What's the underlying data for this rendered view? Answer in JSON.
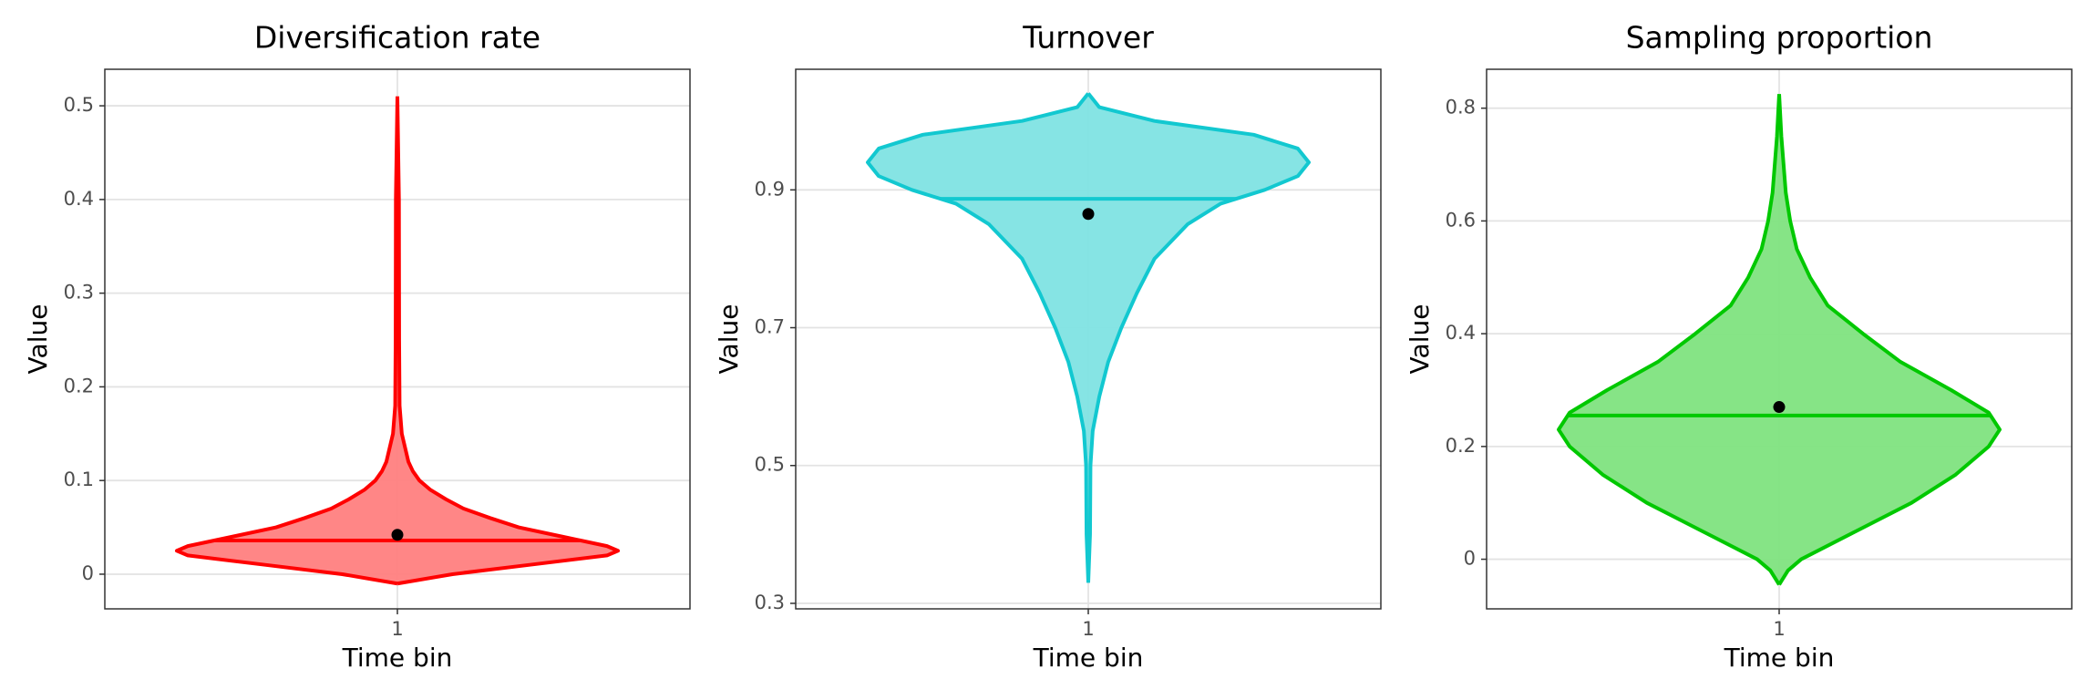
{
  "chart_data": [
    {
      "type": "violin",
      "title": "Diversification rate",
      "x_label": "Time bin",
      "y_label": "Value",
      "categories": [
        "1"
      ],
      "ylim": [
        -0.037,
        0.539
      ],
      "yticks": [
        0.0,
        0.1,
        0.2,
        0.3,
        0.4,
        0.5
      ],
      "grid": true,
      "color": "#ff0000",
      "fill": "#ff7f7f",
      "violin": {
        "y": [
          -0.01,
          0.0,
          0.01,
          0.02,
          0.025,
          0.03,
          0.04,
          0.05,
          0.06,
          0.07,
          0.08,
          0.09,
          0.1,
          0.11,
          0.12,
          0.13,
          0.15,
          0.18,
          0.25,
          0.4,
          0.51
        ],
        "density": [
          0,
          0.25,
          0.6,
          0.95,
          1.0,
          0.95,
          0.75,
          0.55,
          0.42,
          0.3,
          0.22,
          0.15,
          0.1,
          0.07,
          0.05,
          0.04,
          0.02,
          0.01,
          0.008,
          0.007,
          0
        ]
      },
      "median": 0.036,
      "mean": 0.042
    },
    {
      "type": "violin",
      "title": "Turnover",
      "x_label": "Time bin",
      "y_label": "Value",
      "categories": [
        "1"
      ],
      "ylim": [
        0.292,
        1.075
      ],
      "yticks": [
        0.3,
        0.5,
        0.7,
        0.9
      ],
      "grid": true,
      "color": "#12c8d0",
      "fill": "#7fe3e3",
      "violin": {
        "y": [
          0.33,
          0.4,
          0.5,
          0.55,
          0.6,
          0.65,
          0.7,
          0.75,
          0.8,
          0.85,
          0.88,
          0.9,
          0.92,
          0.94,
          0.96,
          0.98,
          1.0,
          1.02,
          1.04
        ],
        "density": [
          0,
          0.008,
          0.01,
          0.02,
          0.05,
          0.09,
          0.15,
          0.22,
          0.3,
          0.45,
          0.6,
          0.8,
          0.95,
          1.0,
          0.95,
          0.75,
          0.3,
          0.05,
          0
        ]
      },
      "median": 0.887,
      "mean": 0.865
    },
    {
      "type": "violin",
      "title": "Sampling proportion",
      "x_label": "Time bin",
      "y_label": "Value",
      "categories": [
        "1"
      ],
      "ylim": [
        -0.088,
        0.869
      ],
      "yticks": [
        0.0,
        0.2,
        0.4,
        0.6,
        0.8
      ],
      "grid": true,
      "color": "#00c800",
      "fill": "#7fe37f",
      "violin": {
        "y": [
          -0.045,
          -0.02,
          0.0,
          0.05,
          0.1,
          0.15,
          0.2,
          0.23,
          0.26,
          0.3,
          0.35,
          0.4,
          0.45,
          0.5,
          0.55,
          0.6,
          0.65,
          0.7,
          0.75,
          0.825
        ],
        "density": [
          0,
          0.04,
          0.1,
          0.35,
          0.6,
          0.8,
          0.95,
          1.0,
          0.95,
          0.78,
          0.55,
          0.38,
          0.22,
          0.14,
          0.08,
          0.05,
          0.03,
          0.02,
          0.01,
          0
        ]
      },
      "median": 0.255,
      "mean": 0.27
    }
  ]
}
